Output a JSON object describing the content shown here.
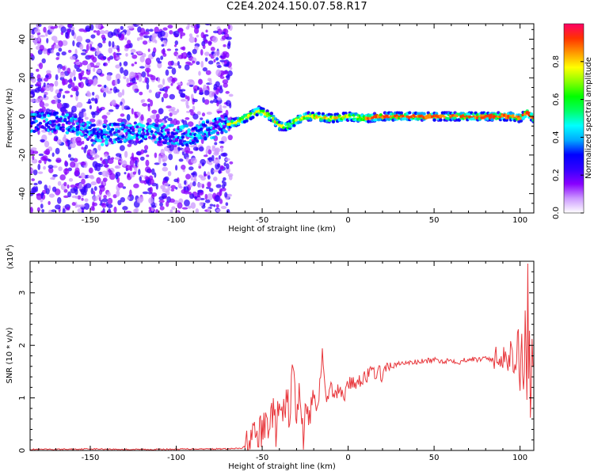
{
  "title": "C2E4.2024.150.07.58.R17",
  "chart_data": [
    {
      "type": "heatmap",
      "xlabel": "Height of straight line (km)",
      "ylabel": "Frequency (Hz)",
      "xlim": [
        -185,
        108
      ],
      "ylim": [
        -50,
        48
      ],
      "x_ticks": [
        -150,
        -100,
        -50,
        0,
        50,
        100
      ],
      "y_ticks": [
        -40,
        -20,
        0,
        20,
        40
      ],
      "colorbar": {
        "label": "Normalized spectral amplitude",
        "range": [
          0,
          1
        ],
        "ticks": [
          "0.0",
          "0.2",
          "0.4",
          "0.6",
          "0.8"
        ],
        "colors": [
          "#ffffff",
          "#cc99ff",
          "#8800ff",
          "#3300ff",
          "#0000ff",
          "#00aaff",
          "#00ffff",
          "#00ff66",
          "#00ff00",
          "#88ff00",
          "#ffff00",
          "#ff9900",
          "#ff3300",
          "#ff0066"
        ]
      },
      "ridge_center_hz": [
        [
          -185,
          -3
        ],
        [
          -165,
          -3
        ],
        [
          -155,
          -6
        ],
        [
          -145,
          -10
        ],
        [
          -130,
          -8
        ],
        [
          -110,
          -9
        ],
        [
          -95,
          -10
        ],
        [
          -85,
          -8
        ],
        [
          -75,
          -5
        ],
        [
          -65,
          -3
        ],
        [
          -58,
          0
        ],
        [
          -52,
          3
        ],
        [
          -45,
          0
        ],
        [
          -40,
          -5
        ],
        [
          -35,
          -5
        ],
        [
          -30,
          -2
        ],
        [
          -25,
          0
        ],
        [
          -20,
          0
        ],
        [
          -10,
          -1
        ],
        [
          0,
          0
        ],
        [
          10,
          -1
        ],
        [
          20,
          0
        ],
        [
          40,
          0
        ],
        [
          60,
          0
        ],
        [
          80,
          0
        ],
        [
          95,
          0
        ],
        [
          100,
          -1
        ],
        [
          104,
          2
        ],
        [
          108,
          -1
        ]
      ]
    },
    {
      "type": "line",
      "xlabel": "Height of straight line (km)",
      "ylabel": "SNR (10 * v/v)",
      "y_multiplier": "(x10",
      "y_multiplier_exp": "4",
      "y_multiplier_close": ")",
      "xlim": [
        -185,
        108
      ],
      "ylim": [
        0,
        3.6
      ],
      "x_ticks": [
        -150,
        -100,
        -50,
        0,
        50,
        100
      ],
      "y_ticks": [
        0,
        1,
        2,
        3
      ],
      "color": "#e8383d",
      "series": [
        {
          "x": [
            -185,
            -170,
            -150,
            -130,
            -110,
            -90,
            -70,
            -62,
            -58,
            -55,
            -52,
            -50,
            -48,
            -46,
            -44,
            -42,
            -40,
            -38,
            -36,
            -34,
            -32,
            -30,
            -28,
            -26,
            -24,
            -22,
            -20,
            -18,
            -15,
            -12,
            -10,
            -8,
            -5,
            -2,
            0,
            3,
            6,
            10,
            15,
            20,
            25,
            30,
            35,
            40,
            45,
            50,
            55,
            60,
            65,
            70,
            75,
            80,
            85,
            90,
            93,
            95,
            97,
            99,
            100,
            101,
            102,
            103,
            104,
            104.5,
            105,
            105.5,
            106,
            107,
            108
          ],
          "y": [
            0.02,
            0.02,
            0.03,
            0.02,
            0.02,
            0.03,
            0.03,
            0.04,
            0.12,
            0.25,
            0.3,
            0.35,
            0.5,
            0.55,
            0.75,
            0.4,
            0.8,
            0.55,
            0.95,
            0.7,
            1.65,
            0.5,
            1.2,
            0.3,
            0.9,
            0.55,
            1.1,
            0.75,
            1.8,
            0.9,
            1.2,
            1.0,
            1.2,
            1.05,
            1.3,
            1.25,
            1.35,
            1.4,
            1.5,
            1.45,
            1.6,
            1.65,
            1.67,
            1.68,
            1.7,
            1.72,
            1.7,
            1.72,
            1.68,
            1.75,
            1.72,
            1.78,
            1.7,
            1.85,
            1.7,
            1.95,
            1.6,
            2.2,
            1.2,
            2.0,
            0.9,
            2.4,
            0.8,
            3.55,
            1.2,
            2.3,
            0.7,
            2.05,
            1.6
          ]
        }
      ]
    }
  ]
}
